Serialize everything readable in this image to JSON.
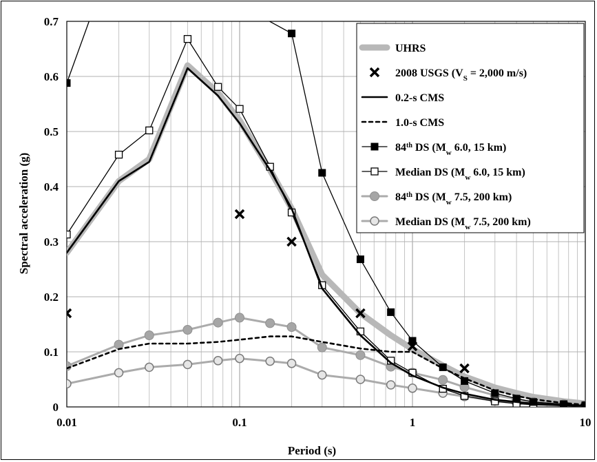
{
  "chart_data": {
    "type": "line",
    "title": "",
    "xlabel": "Period (s)",
    "ylabel": "Spectral acceleration (g)",
    "xscale": "log",
    "xlim": [
      0.01,
      10
    ],
    "ylim": [
      0,
      0.7
    ],
    "x_ticks": [
      "0.01",
      "0.1",
      "1",
      "10"
    ],
    "y_ticks": [
      "0",
      "0.1",
      "0.2",
      "0.3",
      "0.4",
      "0.5",
      "0.6",
      "0.7"
    ],
    "grid": true,
    "legend_position": "top-right",
    "legend": [
      {
        "key": "uhrs",
        "label": "UHRS"
      },
      {
        "key": "usgs",
        "label": "2008 USGS (V",
        "sub": "S",
        "label_tail": " = 2,000 m/s)"
      },
      {
        "key": "cms02",
        "label": "0.2-s CMS"
      },
      {
        "key": "cms10",
        "label": "1.0-s CMS"
      },
      {
        "key": "ds84_6",
        "label": "84",
        "sup": "th",
        "label_tail": " DS (M",
        "sub2": "w",
        "label_end": " 6.0, 15 km)"
      },
      {
        "key": "dsmed_6",
        "label": "Median DS (M",
        "sub2": "w",
        "label_end": " 6.0, 15 km)"
      },
      {
        "key": "ds84_75",
        "label": "84",
        "sup": "th",
        "label_tail": " DS (M",
        "sub2": "w",
        "label_end": " 7.5, 200 km)"
      },
      {
        "key": "dsmed_75",
        "label": "Median DS (M",
        "sub2": "w",
        "label_end": " 7.5, 200 km)"
      }
    ],
    "series": [
      {
        "key": "uhrs",
        "name": "UHRS",
        "color": "#b3b3b3",
        "x": [
          0.01,
          0.02,
          0.03,
          0.05,
          0.075,
          0.1,
          0.15,
          0.2,
          0.3,
          0.5,
          0.75,
          1,
          1.5,
          2,
          3,
          4,
          5,
          7.5,
          10
        ],
        "y": [
          0.28,
          0.41,
          0.45,
          0.62,
          0.57,
          0.52,
          0.43,
          0.36,
          0.24,
          0.17,
          0.13,
          0.105,
          0.075,
          0.055,
          0.035,
          0.025,
          0.018,
          0.01,
          0.006
        ]
      },
      {
        "key": "usgs",
        "name": "2008 USGS",
        "color": "#000000",
        "x": [
          0.01,
          0.1,
          0.2,
          0.5,
          1,
          2
        ],
        "y": [
          0.17,
          0.35,
          0.3,
          0.17,
          0.11,
          0.07
        ]
      },
      {
        "key": "cms02",
        "name": "0.2-s CMS",
        "color": "#000000",
        "x": [
          0.01,
          0.02,
          0.03,
          0.05,
          0.075,
          0.1,
          0.15,
          0.2,
          0.3,
          0.5,
          0.75,
          1,
          1.5,
          2,
          3,
          4,
          5,
          7.5,
          10
        ],
        "y": [
          0.28,
          0.41,
          0.445,
          0.615,
          0.565,
          0.515,
          0.43,
          0.36,
          0.215,
          0.13,
          0.08,
          0.057,
          0.035,
          0.024,
          0.013,
          0.009,
          0.006,
          0.003,
          0.002
        ]
      },
      {
        "key": "cms10",
        "name": "1.0-s CMS",
        "color": "#000000",
        "x": [
          0.01,
          0.02,
          0.03,
          0.05,
          0.075,
          0.1,
          0.15,
          0.2,
          0.3,
          0.5,
          0.75,
          1,
          1.5,
          2,
          3,
          4,
          5,
          7.5,
          10
        ],
        "y": [
          0.07,
          0.105,
          0.115,
          0.115,
          0.118,
          0.122,
          0.128,
          0.128,
          0.118,
          0.106,
          0.1,
          0.1,
          0.07,
          0.052,
          0.03,
          0.02,
          0.014,
          0.007,
          0.004
        ]
      },
      {
        "key": "ds84_6",
        "name": "84th DS (Mw 6.0, 15 km)",
        "color": "#000000",
        "x": [
          0.01,
          0.02,
          0.2,
          0.3,
          0.5,
          0.75,
          1,
          1.5,
          2,
          3,
          4,
          5,
          7.5,
          10
        ],
        "y": [
          0.588,
          0.85,
          0.678,
          0.425,
          0.268,
          0.172,
          0.12,
          0.072,
          0.047,
          0.025,
          0.015,
          0.009,
          0.005,
          0.003
        ]
      },
      {
        "key": "dsmed_6",
        "name": "Median DS (Mw 6.0, 15 km)",
        "color": "#000000",
        "x": [
          0.01,
          0.02,
          0.03,
          0.05,
          0.075,
          0.1,
          0.15,
          0.2,
          0.3,
          0.5,
          0.75,
          1,
          1.5,
          2,
          3,
          4,
          5,
          7.5,
          10
        ],
        "y": [
          0.313,
          0.458,
          0.502,
          0.668,
          0.581,
          0.541,
          0.436,
          0.353,
          0.221,
          0.137,
          0.084,
          0.062,
          0.033,
          0.02,
          0.01,
          0.006,
          0.004,
          0.002,
          0.001
        ]
      },
      {
        "key": "ds84_75",
        "name": "84th DS (Mw 7.5, 200 km)",
        "color": "#a6a6a6",
        "x": [
          0.01,
          0.02,
          0.03,
          0.05,
          0.075,
          0.1,
          0.15,
          0.2,
          0.3,
          0.5,
          0.75,
          1,
          1.5,
          2,
          3,
          4,
          5,
          7.5,
          10
        ],
        "y": [
          0.074,
          0.113,
          0.13,
          0.14,
          0.153,
          0.162,
          0.152,
          0.145,
          0.108,
          0.094,
          0.073,
          0.062,
          0.049,
          0.036,
          0.021,
          0.014,
          0.009,
          0.005,
          0.003
        ]
      },
      {
        "key": "dsmed_75",
        "name": "Median DS (Mw 7.5, 200 km)",
        "color": "#a6a6a6",
        "x": [
          0.01,
          0.02,
          0.03,
          0.05,
          0.075,
          0.1,
          0.15,
          0.2,
          0.3,
          0.5,
          0.75,
          1,
          1.5,
          2,
          3,
          4,
          5,
          7.5,
          10
        ],
        "y": [
          0.042,
          0.062,
          0.072,
          0.077,
          0.084,
          0.088,
          0.083,
          0.079,
          0.058,
          0.05,
          0.04,
          0.034,
          0.025,
          0.019,
          0.011,
          0.007,
          0.005,
          0.003,
          0.002
        ]
      }
    ]
  }
}
